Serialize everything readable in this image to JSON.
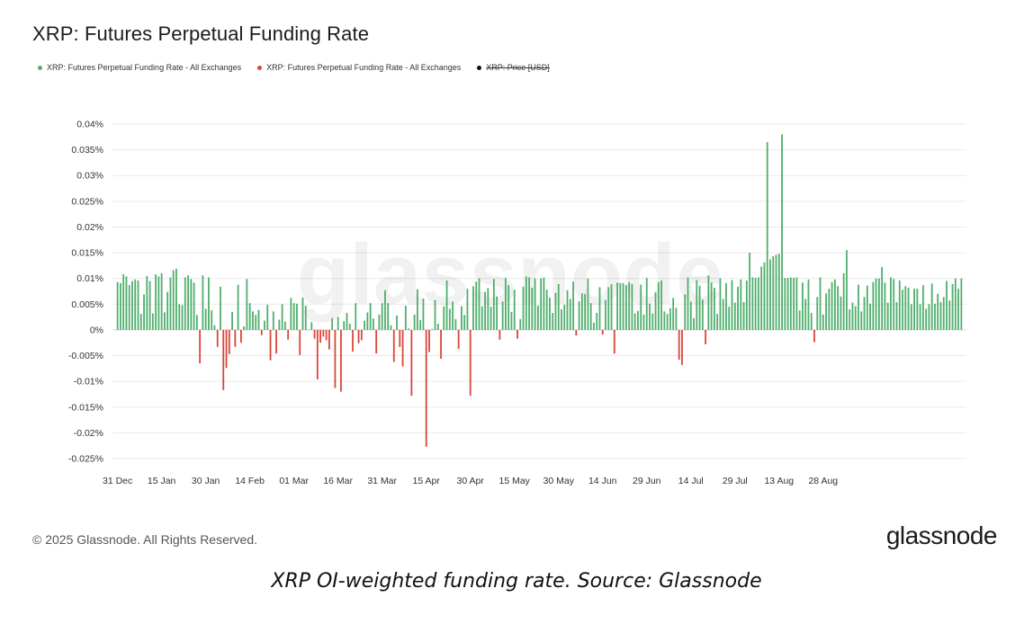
{
  "title": "XRP: Futures Perpetual Funding Rate",
  "legend": [
    {
      "label": "XRP: Futures Perpetual Funding Rate - All Exchanges",
      "color": "#4fae6c",
      "struck": false
    },
    {
      "label": "XRP: Futures Perpetual Funding Rate - All Exchanges",
      "color": "#d9463a",
      "struck": false
    },
    {
      "label": "XRP: Price [USD]",
      "color": "#111111",
      "struck": true
    }
  ],
  "watermark": "glassnode",
  "copyright": "© 2025 Glassnode. All Rights Reserved.",
  "brand": "glassnode",
  "caption": "XRP OI-weighted funding rate. Source: Glassnode",
  "colors": {
    "positive": "#4fae6c",
    "negative": "#d9463a",
    "grid": "#e9e9e9",
    "axis_text": "#333333"
  },
  "chart_data": {
    "type": "bar",
    "title": "XRP: Futures Perpetual Funding Rate",
    "ylim": [
      -0.025,
      0.04
    ],
    "y_ticks": [
      0.04,
      0.035,
      0.03,
      0.025,
      0.02,
      0.015,
      0.01,
      0.005,
      0,
      -0.005,
      -0.01,
      -0.015,
      -0.02,
      -0.025
    ],
    "y_tick_labels": [
      "0.04%",
      "0.035%",
      "0.03%",
      "0.025%",
      "0.02%",
      "0.015%",
      "0.01%",
      "0.005%",
      "0%",
      "-0.005%",
      "-0.01%",
      "-0.015%",
      "-0.02%",
      "-0.025%"
    ],
    "x_tick_labels": [
      "31 Dec",
      "15 Jan",
      "30 Jan",
      "14 Feb",
      "01 Mar",
      "16 Mar",
      "31 Mar",
      "15 Apr",
      "30 Apr",
      "15 May",
      "30 May",
      "14 Jun",
      "29 Jun",
      "14 Jul",
      "29 Jul",
      "13 Aug",
      "28 Aug"
    ],
    "x_tick_index": [
      0,
      15,
      30,
      45,
      60,
      75,
      90,
      105,
      120,
      135,
      150,
      165,
      180,
      195,
      210,
      225,
      240
    ],
    "grid": true,
    "series": [
      {
        "name": "XRP: Futures Perpetual Funding Rate - All Exchanges",
        "unit": "%",
        "values": [
          0.0093,
          0.0091,
          0.0108,
          0.0104,
          0.0087,
          0.0095,
          0.0098,
          0.0096,
          0.0031,
          0.0069,
          0.0105,
          0.0095,
          0.0032,
          0.0108,
          0.0104,
          0.011,
          0.0034,
          0.0074,
          0.0102,
          0.0116,
          0.0119,
          0.005,
          0.0048,
          0.0102,
          0.0106,
          0.0099,
          0.0092,
          0.0029,
          -0.0065,
          0.0106,
          0.0041,
          0.0102,
          0.0038,
          0.0009,
          -0.0033,
          0.0084,
          -0.0117,
          -0.0074,
          -0.0047,
          0.0035,
          -0.0033,
          0.0088,
          -0.0025,
          0.0007,
          0.0099,
          0.0052,
          0.0036,
          0.0029,
          0.0039,
          -0.001,
          0.0018,
          0.0049,
          -0.0059,
          0.0036,
          -0.0046,
          0.002,
          0.005,
          0.0016,
          -0.0019,
          0.0062,
          0.0052,
          0.0051,
          -0.0049,
          0.0063,
          0.0047,
          0.0,
          0.0015,
          -0.0017,
          -0.0096,
          -0.0025,
          -0.0013,
          -0.002,
          -0.0038,
          0.0023,
          -0.0113,
          0.0025,
          -0.012,
          0.0017,
          0.0033,
          0.0012,
          -0.0042,
          0.0052,
          -0.0026,
          -0.002,
          0.0018,
          0.0034,
          0.0052,
          0.0022,
          -0.0046,
          0.003,
          0.0052,
          0.0077,
          0.0052,
          0.0009,
          -0.0062,
          0.0028,
          -0.0033,
          -0.0071,
          0.0047,
          0.0003,
          -0.0128,
          0.003,
          0.0079,
          0.0019,
          0.0061,
          -0.0227,
          -0.0043,
          0.0002,
          0.0058,
          0.0012,
          -0.0056,
          0.0046,
          0.0096,
          0.0041,
          0.0055,
          0.0021,
          -0.0037,
          0.0046,
          0.0029,
          0.008,
          -0.0128,
          0.0085,
          0.0094,
          0.01,
          0.0046,
          0.0074,
          0.0081,
          0.0045,
          0.0099,
          0.0065,
          -0.0019,
          0.0055,
          0.0101,
          0.0087,
          0.0035,
          0.0078,
          -0.0017,
          0.0021,
          0.0084,
          0.0104,
          0.0102,
          0.0082,
          0.01,
          0.0047,
          0.01,
          0.0102,
          0.0078,
          0.0063,
          0.0033,
          0.0072,
          0.0089,
          0.004,
          0.0049,
          0.0077,
          0.006,
          0.0094,
          -0.0011,
          0.0056,
          0.0071,
          0.007,
          0.01,
          0.0052,
          0.0014,
          0.0033,
          0.0083,
          -0.0009,
          0.0058,
          0.0083,
          0.0089,
          -0.0046,
          0.0092,
          0.0091,
          0.0091,
          0.0087,
          0.0093,
          0.0089,
          0.0032,
          0.0037,
          0.0088,
          0.003,
          0.0101,
          0.0051,
          0.0032,
          0.0073,
          0.0093,
          0.0096,
          0.0036,
          0.0031,
          0.0042,
          0.0062,
          0.0043,
          -0.0058,
          -0.0068,
          0.0069,
          0.0102,
          0.0055,
          0.0023,
          0.0097,
          0.0086,
          0.0059,
          -0.0028,
          0.0106,
          0.0092,
          0.0082,
          0.0031,
          0.01,
          0.006,
          0.0091,
          0.0045,
          0.0097,
          0.0053,
          0.0084,
          0.0098,
          0.0054,
          0.0096,
          0.015,
          0.0102,
          0.0101,
          0.0102,
          0.0123,
          0.0131,
          0.0365,
          0.0137,
          0.0143,
          0.0146,
          0.0148,
          0.038,
          0.0101,
          0.0101,
          0.0102,
          0.0101,
          0.0102,
          0.0038,
          0.0092,
          0.006,
          0.0098,
          0.0033,
          -0.0024,
          0.0064,
          0.0102,
          0.003,
          0.0071,
          0.008,
          0.0093,
          0.0098,
          0.0085,
          0.0065,
          0.011,
          0.0155,
          0.004,
          0.0053,
          0.0046,
          0.0088,
          0.0036,
          0.0064,
          0.0086,
          0.0051,
          0.0093,
          0.01,
          0.01,
          0.0122,
          0.0092,
          0.0053,
          0.0102,
          0.0099,
          0.0054,
          0.0096,
          0.0078,
          0.0085,
          0.0082,
          0.005,
          0.008,
          0.008,
          0.005,
          0.0087,
          0.0041,
          0.005,
          0.009,
          0.0051,
          0.007,
          0.0054,
          0.0064,
          0.0095,
          0.0057,
          0.0089,
          0.01,
          0.008,
          0.01
        ]
      }
    ]
  }
}
